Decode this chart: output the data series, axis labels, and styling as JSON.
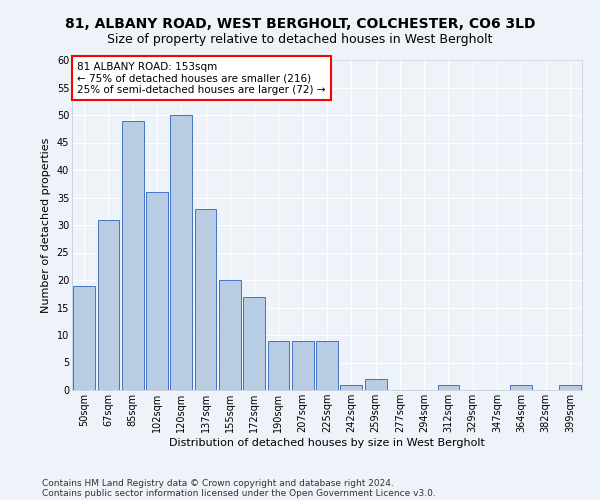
{
  "title1": "81, ALBANY ROAD, WEST BERGHOLT, COLCHESTER, CO6 3LD",
  "title2": "Size of property relative to detached houses in West Bergholt",
  "xlabel": "Distribution of detached houses by size in West Bergholt",
  "ylabel": "Number of detached properties",
  "bin_labels": [
    "50sqm",
    "67sqm",
    "85sqm",
    "102sqm",
    "120sqm",
    "137sqm",
    "155sqm",
    "172sqm",
    "190sqm",
    "207sqm",
    "225sqm",
    "242sqm",
    "259sqm",
    "277sqm",
    "294sqm",
    "312sqm",
    "329sqm",
    "347sqm",
    "364sqm",
    "382sqm",
    "399sqm"
  ],
  "bar_values": [
    19,
    31,
    49,
    36,
    50,
    33,
    20,
    17,
    9,
    9,
    9,
    1,
    2,
    0,
    0,
    1,
    0,
    0,
    1,
    0,
    1
  ],
  "bar_color": "#b8cce4",
  "bar_edge_color": "#4472c4",
  "annotation_text": "81 ALBANY ROAD: 153sqm\n← 75% of detached houses are smaller (216)\n25% of semi-detached houses are larger (72) →",
  "annotation_box_color": "white",
  "annotation_box_edge": "red",
  "ylim": [
    0,
    60
  ],
  "yticks": [
    0,
    5,
    10,
    15,
    20,
    25,
    30,
    35,
    40,
    45,
    50,
    55,
    60
  ],
  "footer1": "Contains HM Land Registry data © Crown copyright and database right 2024.",
  "footer2": "Contains public sector information licensed under the Open Government Licence v3.0.",
  "bg_color": "#eef2f9",
  "grid_color": "#ffffff",
  "title_fontsize": 10,
  "subtitle_fontsize": 9,
  "axis_label_fontsize": 8,
  "tick_fontsize": 7,
  "annotation_fontsize": 7.5,
  "footer_fontsize": 6.5
}
